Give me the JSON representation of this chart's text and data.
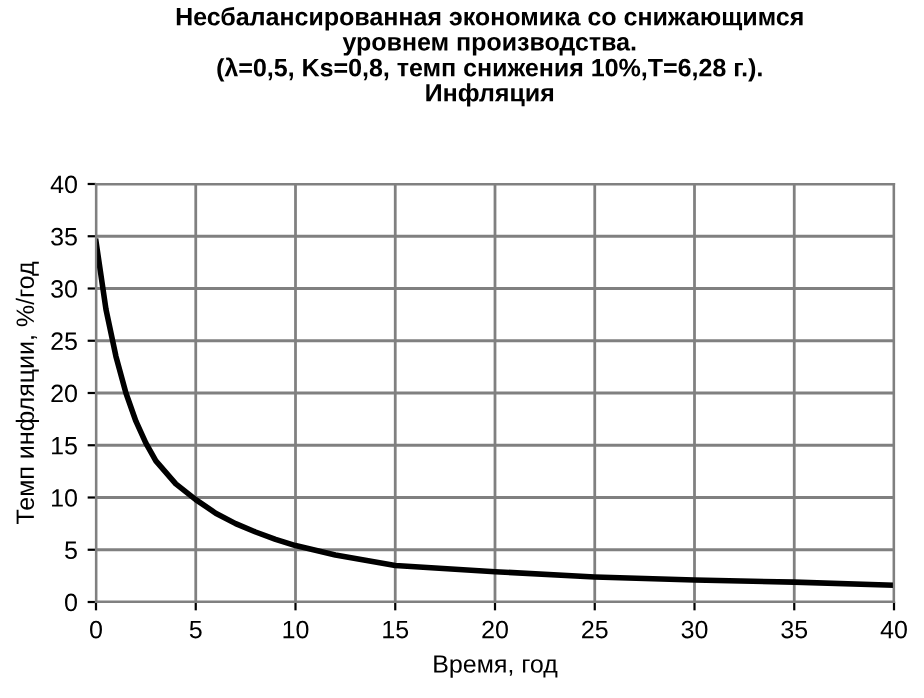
{
  "chart_data": {
    "type": "line",
    "title": "Несбалансированная экономика со снижающимся\nуровнем производства.\n(λ=0,5, Ks=0,8, темп снижения 10%,T=6,28 г.).\nИнфляция",
    "xlabel": "Время, год",
    "ylabel": "Темп инфляции, %/год",
    "x": [
      0,
      0.5,
      1,
      1.5,
      2,
      2.5,
      3,
      4,
      5,
      6,
      7,
      8,
      9,
      10,
      12,
      15,
      20,
      25,
      30,
      35,
      40
    ],
    "series": [
      {
        "color": "#000000",
        "values": [
          34.5,
          28,
          23.5,
          20,
          17.3,
          15.2,
          13.5,
          11.3,
          9.8,
          8.5,
          7.5,
          6.7,
          6,
          5.4,
          4.5,
          3.5,
          2.9,
          2.4,
          2.1,
          1.9,
          1.6
        ]
      }
    ],
    "xlim": [
      0,
      40
    ],
    "xticks": [
      0,
      5,
      10,
      15,
      20,
      25,
      30,
      35,
      40
    ],
    "ylim": [
      0,
      40
    ],
    "yticks": [
      0,
      5,
      10,
      15,
      20,
      25,
      30,
      35,
      40
    ],
    "grid": true,
    "legend": false,
    "marker": "none",
    "line_style": "solid"
  }
}
